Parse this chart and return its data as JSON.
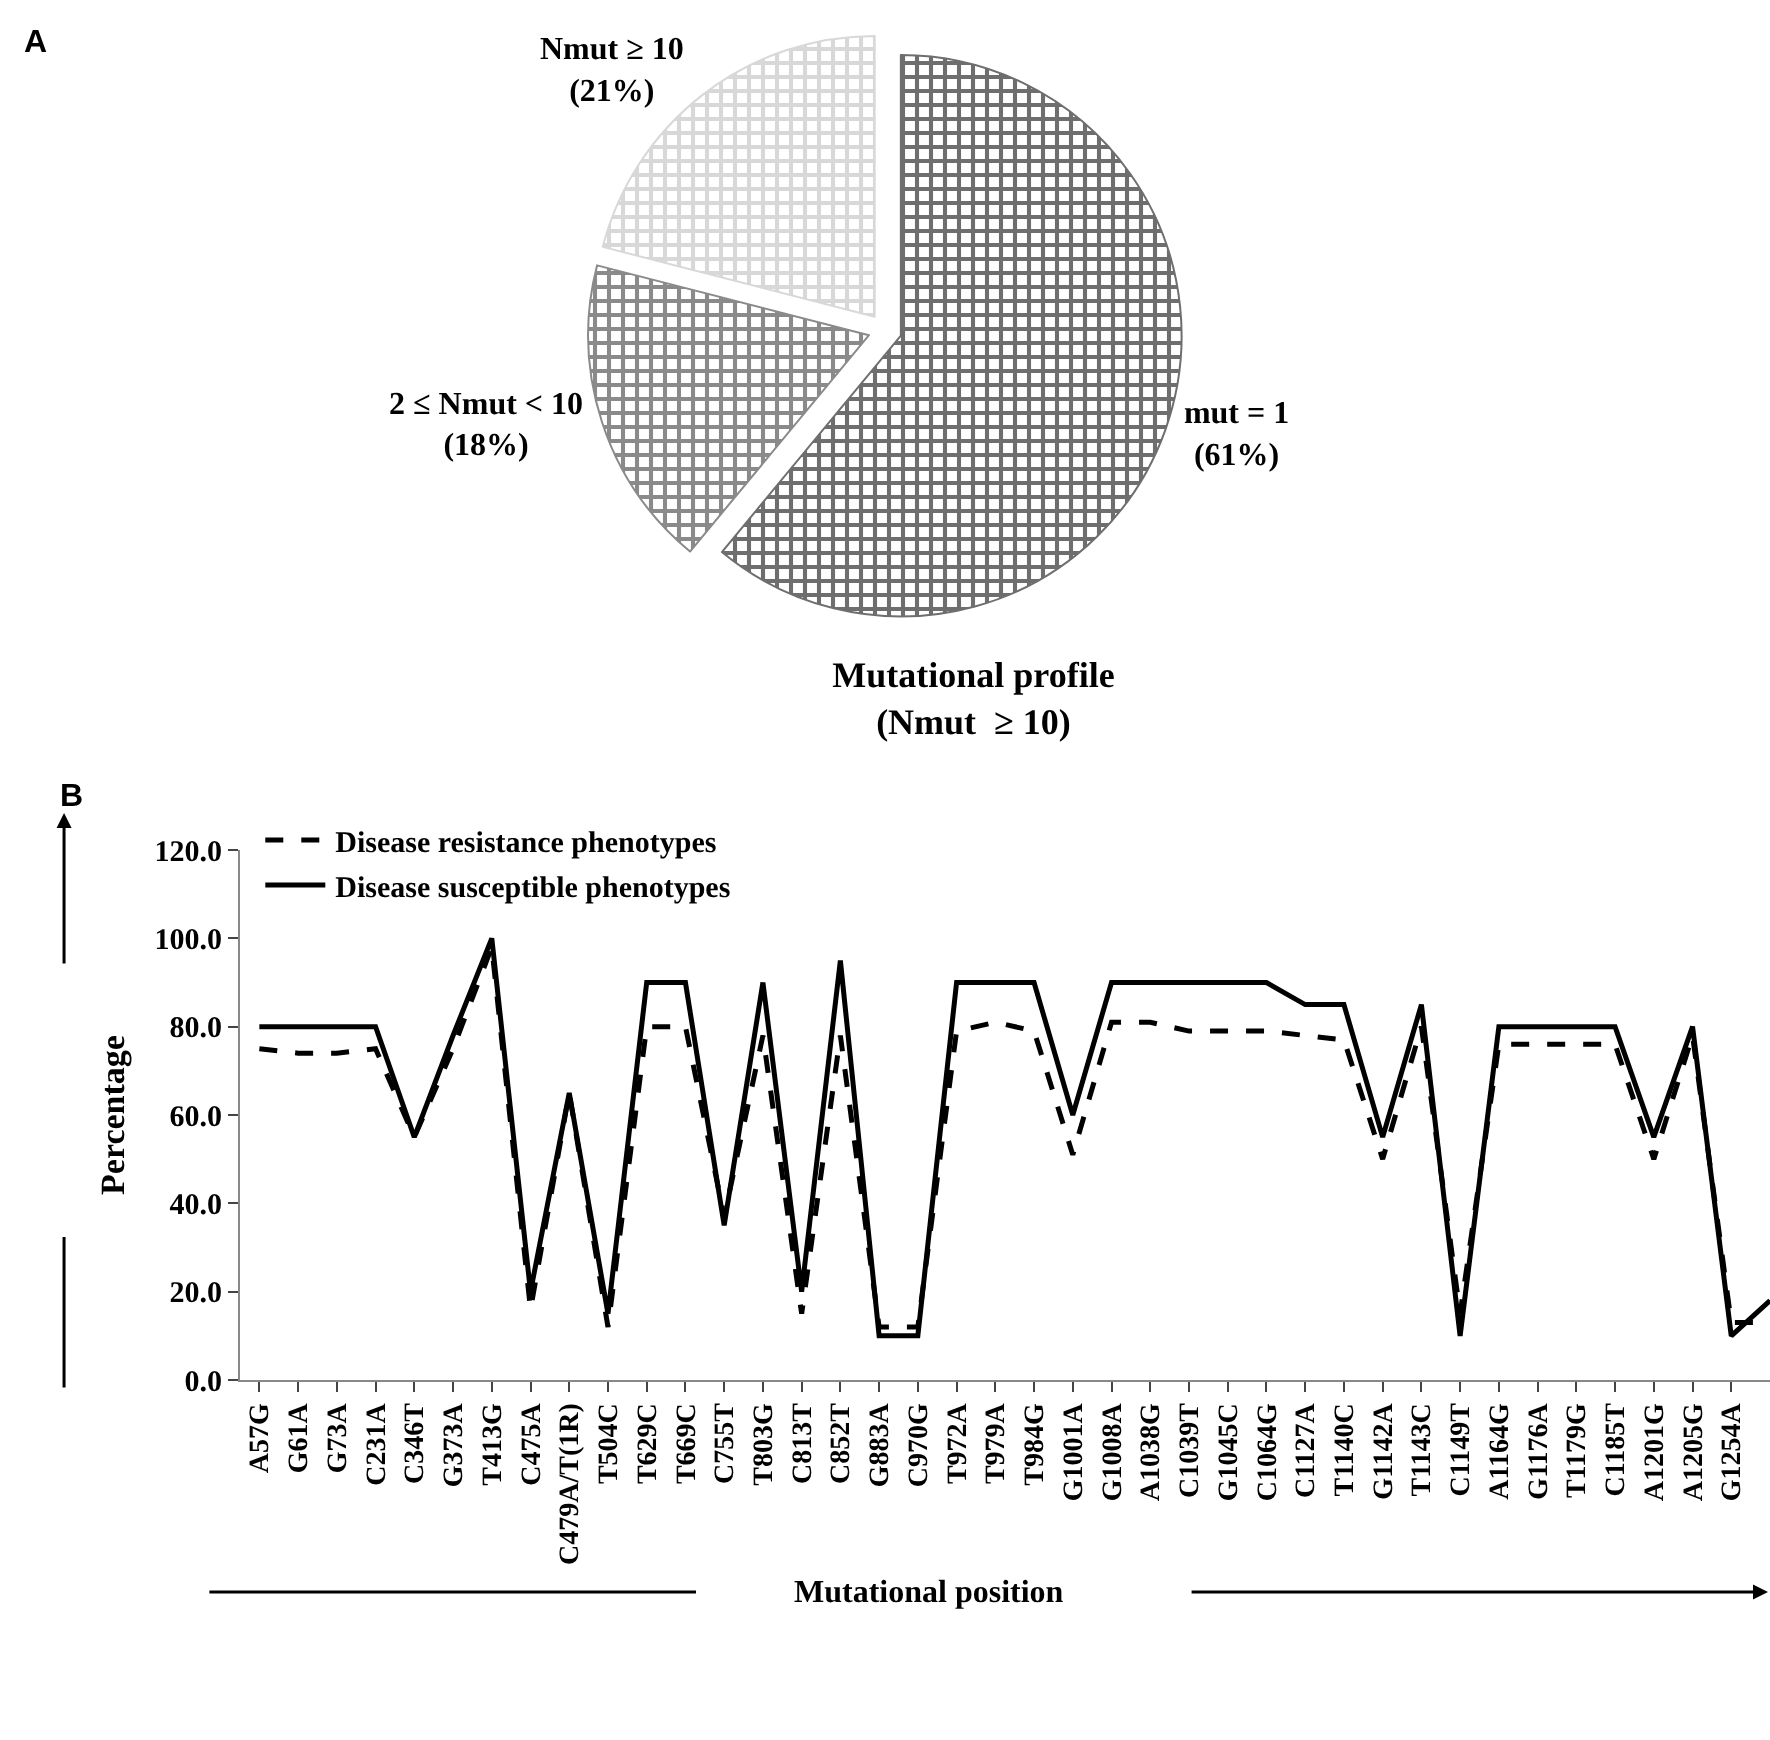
{
  "chart_data": [
    {
      "type": "pie",
      "annotations": [
        "A"
      ],
      "categories": [
        "mut = 1",
        "2 ≤ Nmut < 10",
        "Nmut ≥ 10"
      ],
      "values": [
        61,
        18,
        21
      ],
      "value_labels": [
        "(61%)",
        "(18%)",
        "(21%)"
      ],
      "colors": [
        "#6e6e6e",
        "#8a8a8a",
        "#d8d8d8"
      ],
      "legend": false
    },
    {
      "type": "line",
      "title": "Mutational profile",
      "subtitle": "(Nmut  ≥ 10)",
      "xlabel": "Mutational position",
      "ylabel": "Percentage",
      "annotations": [
        "B"
      ],
      "categories": [
        "A57G",
        "G61A",
        "G73A",
        "C231A",
        "C346T",
        "G373A",
        "T413G",
        "C475A",
        "C479A/T(1R)",
        "T504C",
        "T629C",
        "T669C",
        "C755T",
        "T803G",
        "C813T",
        "C852T",
        "G883A",
        "C970G",
        "T972A",
        "T979A",
        "T984G",
        "G1001A",
        "G1008A",
        "A1038G",
        "C1039T",
        "G1045C",
        "C1064G",
        "C1127A",
        "T1140C",
        "G1142A",
        "T1143C",
        "C1149T",
        "A1164G",
        "G1176A",
        "T1179G",
        "C1185T",
        "A1201G",
        "A1205G",
        "G1254A",
        null
      ],
      "series": [
        {
          "name": "Disease resistance phenotypes",
          "color": "#000000",
          "line_style": "dashed",
          "values": [
            75,
            74,
            74,
            75,
            55,
            75,
            98,
            16,
            65,
            12,
            80,
            80,
            37,
            78,
            15,
            78,
            12,
            12,
            79,
            81,
            79,
            51,
            81,
            81,
            79,
            79,
            79,
            78,
            77,
            50,
            80,
            15,
            76,
            76,
            76,
            76,
            50,
            78,
            13,
            13
          ]
        },
        {
          "name": "Disease susceptible phenotypes",
          "color": "#000000",
          "line_style": "solid",
          "values": [
            80,
            80,
            80,
            80,
            55,
            78,
            100,
            20,
            65,
            15,
            90,
            90,
            35,
            90,
            20,
            95,
            10,
            10,
            90,
            90,
            90,
            60,
            90,
            90,
            90,
            90,
            90,
            85,
            85,
            55,
            85,
            10,
            80,
            80,
            80,
            80,
            55,
            80,
            10,
            18
          ]
        }
      ],
      "ylim": [
        0,
        120
      ],
      "yticks": [
        {
          "value": 0,
          "label": "0.0"
        },
        {
          "value": 20,
          "label": "20.0"
        },
        {
          "value": 40,
          "label": "40.0"
        },
        {
          "value": 60,
          "label": "60.0"
        },
        {
          "value": 80,
          "label": "80.0"
        },
        {
          "value": 100,
          "label": "100.0"
        },
        {
          "value": 120,
          "label": "120.0"
        }
      ],
      "grid": false,
      "legend": "top left",
      "marker": "none"
    }
  ]
}
